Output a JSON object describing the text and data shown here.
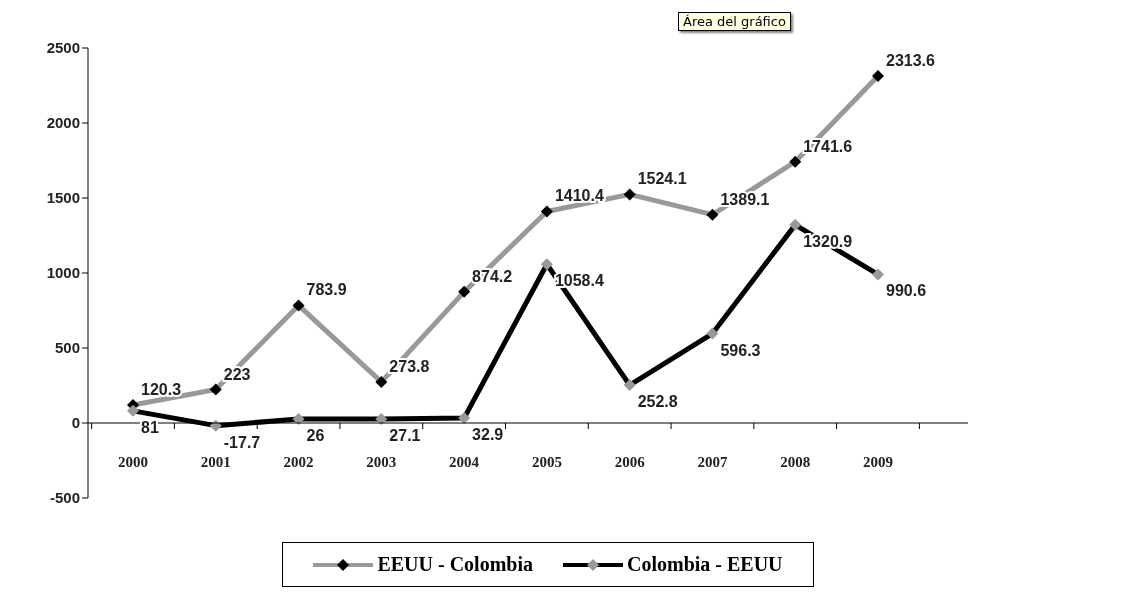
{
  "chart_data": {
    "type": "line",
    "categories": [
      "2000",
      "2001",
      "2002",
      "2003",
      "2004",
      "2005",
      "2006",
      "2007",
      "2008",
      "2009"
    ],
    "series": [
      {
        "name": "EEUU - Colombia",
        "color": "#999999",
        "colors": [
          "#000000",
          "#000000",
          "#000000",
          "#000000",
          "#000000",
          "#000000",
          "#000000",
          "#000000",
          "#000000",
          "#000000"
        ],
        "values": [
          120.3,
          223,
          783.9,
          273.8,
          874.2,
          1410.4,
          1524.1,
          1389.1,
          1741.6,
          2313.6
        ]
      },
      {
        "name": "Colombia - EEUU",
        "color": "#000000",
        "colors": [
          "#999999",
          "#999999",
          "#999999",
          "#999999",
          "#999999",
          "#999999",
          "#999999",
          "#999999",
          "#999999",
          "#999999"
        ],
        "values": [
          81,
          -17.7,
          26,
          27.1,
          32.9,
          1058.4,
          252.8,
          596.3,
          1320.9,
          990.6
        ]
      }
    ],
    "ylim": [
      -500,
      2500
    ],
    "yticks": [
      -500,
      0,
      500,
      1000,
      1500,
      2000,
      2500
    ],
    "annotations": [
      "Área del gráfico"
    ],
    "data_labels": true,
    "marker": "diamond",
    "line_style": "solid",
    "legend": "bottom",
    "grid": false
  }
}
